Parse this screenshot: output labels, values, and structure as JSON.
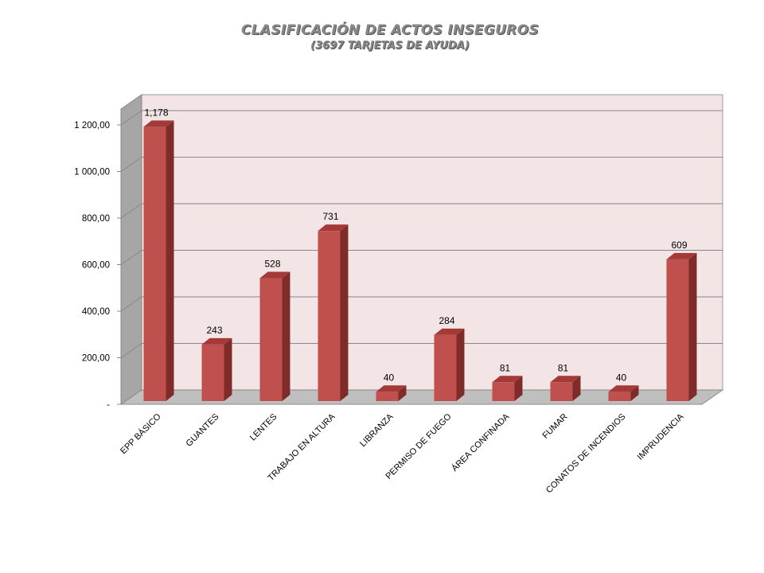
{
  "chart_data": {
    "type": "bar",
    "title": "CLASIFICACIÓN DE ACTOS INSEGUROS",
    "subtitle": "(3697  TARJETAS DE AYUDA)",
    "categories": [
      "EPP BÁSICO",
      "GUANTES",
      "LENTES",
      "TRABAJO EN ALTURA",
      "LIBRANZA",
      "PERMISO DE FUEGO",
      "ÁREA CONFINADA",
      "FUMAR",
      "CONATOS DE INCENDIOS",
      "IMPRUDENCIA"
    ],
    "values": [
      1178,
      243,
      528,
      731,
      40,
      284,
      81,
      81,
      40,
      609
    ],
    "value_labels": [
      "1,178",
      "243",
      "528",
      "731",
      "40",
      "284",
      "81",
      "81",
      "40",
      "609"
    ],
    "yticks": [
      0,
      200,
      400,
      600,
      800,
      1000,
      1200
    ],
    "ytick_labels": [
      "-",
      "200,00",
      "400,00",
      "600,00",
      "800,00",
      "1 000,00",
      "1 200,00"
    ],
    "ylim": [
      0,
      1200
    ],
    "grid": true,
    "legend": "none",
    "colors": {
      "bar_front": "#c0504d",
      "bar_top": "#a33a37",
      "bar_side": "#7f2b29",
      "back_wall": "#f3e5e5",
      "side_wall": "#a6a6a6",
      "floor": "#bfbfbf",
      "gridline": "#888888"
    }
  }
}
